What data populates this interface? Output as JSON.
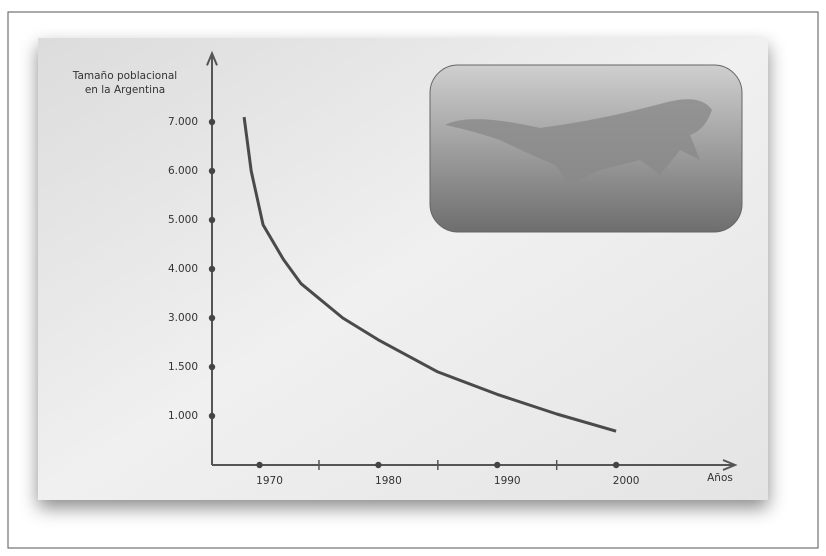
{
  "chart_data": {
    "type": "line",
    "y_label_lines": [
      "Tamaño poblacional",
      "en la Argentina"
    ],
    "x_label": "Años",
    "x": [
      1968.7,
      1969.3,
      1970.3,
      1972,
      1973.5,
      1977,
      1980,
      1985,
      1990,
      1995,
      2000
    ],
    "series": [
      {
        "color": "#4a4a4a",
        "values": [
          7100,
          6000,
          4900,
          4200,
          3700,
          3000,
          2330,
          1450,
          1220,
          1020,
          690
        ]
      }
    ],
    "xlim": [
      1966,
      2010
    ],
    "xticks": [
      1970,
      1980,
      1990,
      2000
    ],
    "ylim": [
      0,
      8400
    ],
    "yticks": [
      {
        "value": 1000,
        "label": "1.000"
      },
      {
        "value": 1500,
        "label": "1.500"
      },
      {
        "value": 3000,
        "label": "3.000"
      },
      {
        "value": 4000,
        "label": "4.000"
      },
      {
        "value": 5000,
        "label": "5.000"
      },
      {
        "value": 6000,
        "label": "6.000"
      },
      {
        "value": 7000,
        "label": "7.000"
      }
    ]
  }
}
